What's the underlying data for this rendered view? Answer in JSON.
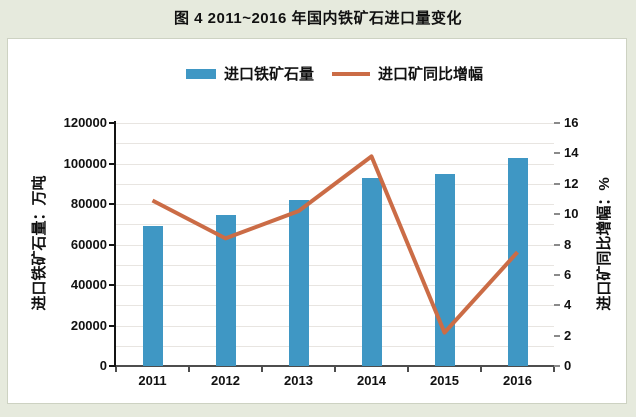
{
  "figure": {
    "title": "图 4  2011~2016 年国内铁矿石进口量变化"
  },
  "legend": [
    {
      "label": "进口铁矿石量",
      "swatch": "bar",
      "color": "#3F97C4"
    },
    {
      "label": "进口矿同比增幅",
      "swatch": "line",
      "color": "#CB6C46"
    }
  ],
  "chart_data": {
    "type": "combo-bar-line",
    "title": "图 4  2011~2016 年国内铁矿石进口量变化",
    "categories": [
      "2011",
      "2012",
      "2013",
      "2014",
      "2015",
      "2016"
    ],
    "series": [
      {
        "name": "进口铁矿石量",
        "chart": "bar",
        "axis": "left",
        "unit": "万吨",
        "color": "#3F97C4",
        "values": [
          69000,
          74500,
          82000,
          93000,
          95000,
          102500
        ]
      },
      {
        "name": "进口矿同比增幅",
        "chart": "line",
        "axis": "right",
        "unit": "%",
        "color": "#CB6C46",
        "values": [
          10.9,
          8.4,
          10.2,
          13.8,
          2.2,
          7.5
        ]
      }
    ],
    "left_axis": {
      "label": "进口铁矿石量：万吨",
      "min": 0,
      "max": 120000,
      "tick_step": 20000,
      "minor_grid_step": 10000,
      "ticks": [
        "0",
        "20000",
        "40000",
        "60000",
        "80000",
        "100000",
        "120000"
      ]
    },
    "right_axis": {
      "label": "进口矿同比增幅：%",
      "min": 0,
      "max": 16,
      "tick_step": 2,
      "ticks": [
        "0",
        "2",
        "4",
        "6",
        "8",
        "10",
        "12",
        "14",
        "16"
      ]
    },
    "grid": "horizontal gridlines every 10000 (left axis)",
    "legend_position": "top-center"
  },
  "colors": {
    "page_background": "#E6EADD",
    "panel_background": "#FFFFFF",
    "panel_border": "#CDD2C2",
    "gridline": "#E8E5E1",
    "axis_left": "#141414",
    "axis_bottom": "#4D4D4D",
    "bar_blue": "#3F97C4",
    "line_orange": "#CB6C46",
    "text": "#111111"
  }
}
